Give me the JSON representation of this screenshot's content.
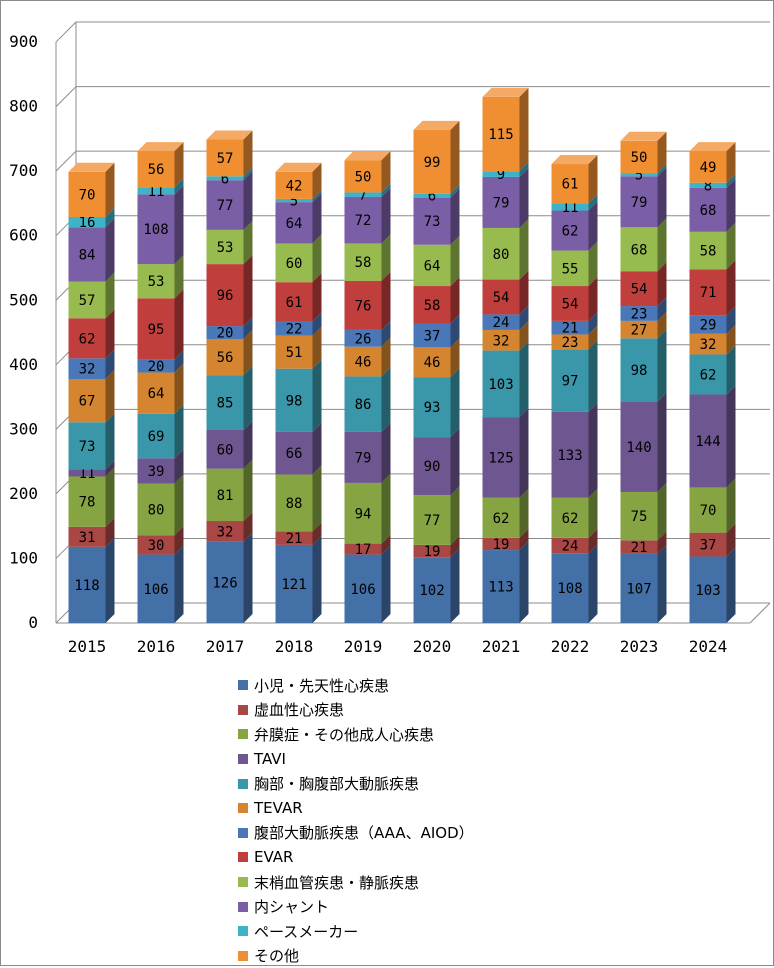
{
  "chart_data": {
    "type": "bar",
    "stacked": true,
    "three_d": true,
    "categories": [
      "2015",
      "2016",
      "2017",
      "2018",
      "2019",
      "2020",
      "2021",
      "2022",
      "2023",
      "2024"
    ],
    "ylim": [
      0,
      900
    ],
    "yticks": [
      0,
      100,
      200,
      300,
      400,
      500,
      600,
      700,
      800,
      900
    ],
    "grid": true,
    "legend_position": "bottom",
    "series": [
      {
        "name": "小児・先天性心疾患",
        "color": "#4470a8",
        "values": [
          118,
          106,
          126,
          121,
          106,
          102,
          113,
          108,
          107,
          103
        ]
      },
      {
        "name": "虚血性心疾患",
        "color": "#a84744",
        "values": [
          31,
          30,
          32,
          21,
          17,
          19,
          19,
          24,
          21,
          37
        ]
      },
      {
        "name": "弁膜症・その他成人心疾患",
        "color": "#86a442",
        "values": [
          78,
          80,
          81,
          88,
          94,
          77,
          62,
          62,
          75,
          70
        ]
      },
      {
        "name": "TAVI",
        "color": "#6e5790",
        "values": [
          11,
          39,
          60,
          66,
          79,
          90,
          125,
          133,
          140,
          144
        ]
      },
      {
        "name": "胸部・胸腹部大動脈疾患",
        "color": "#3a97aa",
        "values": [
          73,
          69,
          85,
          98,
          86,
          93,
          103,
          97,
          98,
          62
        ]
      },
      {
        "name": "TEVAR",
        "color": "#d5842f",
        "values": [
          67,
          64,
          56,
          51,
          46,
          46,
          32,
          23,
          27,
          32
        ]
      },
      {
        "name": "腹部大動脈疾患（AAA、AIOD）",
        "color": "#4a77b8",
        "values": [
          32,
          20,
          20,
          22,
          26,
          37,
          24,
          21,
          23,
          29
        ]
      },
      {
        "name": "EVAR",
        "color": "#c03f3c",
        "values": [
          62,
          95,
          96,
          61,
          76,
          58,
          54,
          54,
          54,
          71
        ]
      },
      {
        "name": "末梢血管疾患・静脈疾患",
        "color": "#98bb4f",
        "values": [
          57,
          53,
          53,
          60,
          58,
          64,
          80,
          55,
          68,
          58
        ]
      },
      {
        "name": "内シャント",
        "color": "#7a5ea6",
        "values": [
          84,
          108,
          77,
          64,
          72,
          73,
          79,
          62,
          79,
          68
        ]
      },
      {
        "name": "ペースメーカー",
        "color": "#3eb2c7",
        "values": [
          16,
          11,
          6,
          5,
          7,
          6,
          9,
          11,
          5,
          8
        ]
      },
      {
        "name": "その他",
        "color": "#f08e32",
        "values": [
          70,
          56,
          57,
          42,
          50,
          99,
          115,
          61,
          50,
          49
        ]
      }
    ]
  }
}
